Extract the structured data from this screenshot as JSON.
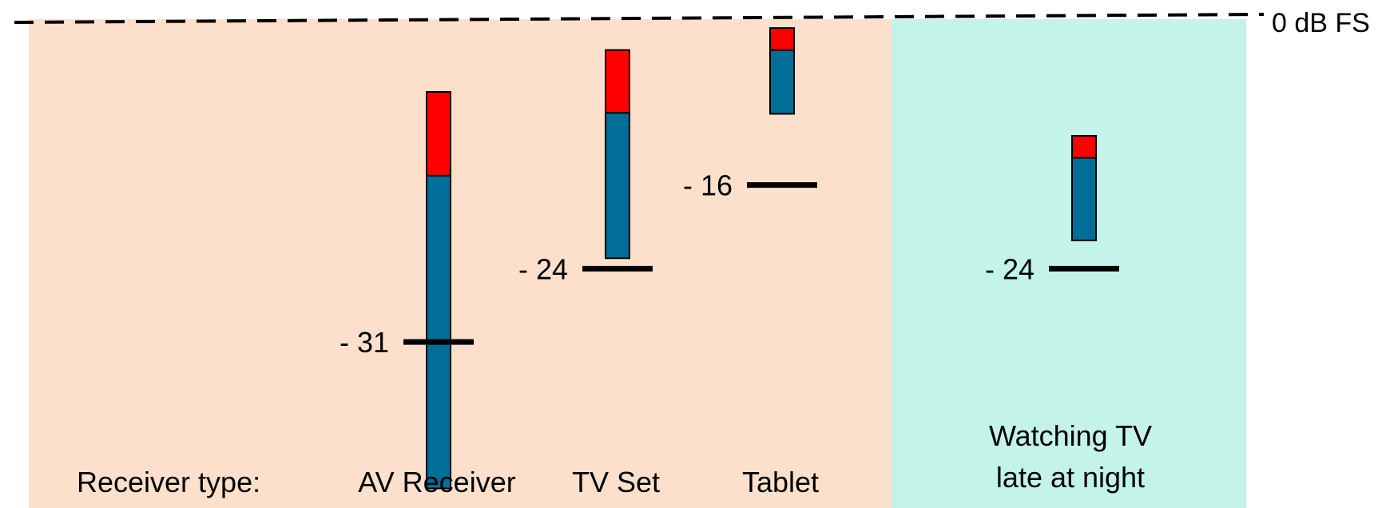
{
  "chart_data": {
    "type": "bar",
    "reference_line": {
      "label": "0 dB FS",
      "value": 0
    },
    "row_label": "Receiver type:",
    "colors": {
      "panel_receivers": "#fde0cc",
      "panel_scenario": "#c4f3e9",
      "body": "#006e96",
      "top": "#ff0000",
      "marker": "#000000"
    },
    "groups": [
      {
        "name": "receivers",
        "items": [
          {
            "category": "AV Receiver",
            "value": -31,
            "value_label": "- 31",
            "top": -7.1,
            "red_bottom": -15.1,
            "bottom": -45.0
          },
          {
            "category": "TV Set",
            "value": -24,
            "value_label": "- 24",
            "top": -3.1,
            "red_bottom": -9.1,
            "bottom": -23.0
          },
          {
            "category": "Tablet",
            "value": -16,
            "value_label": "- 16",
            "top": -1.0,
            "red_bottom": -3.1,
            "bottom": -9.2
          }
        ]
      },
      {
        "name": "scenario",
        "caption": [
          "Watching TV",
          "late at night"
        ],
        "items": [
          {
            "value": -24,
            "value_label": "- 24",
            "top": -11.3,
            "red_bottom": -13.4,
            "bottom": -21.3
          }
        ]
      }
    ]
  }
}
